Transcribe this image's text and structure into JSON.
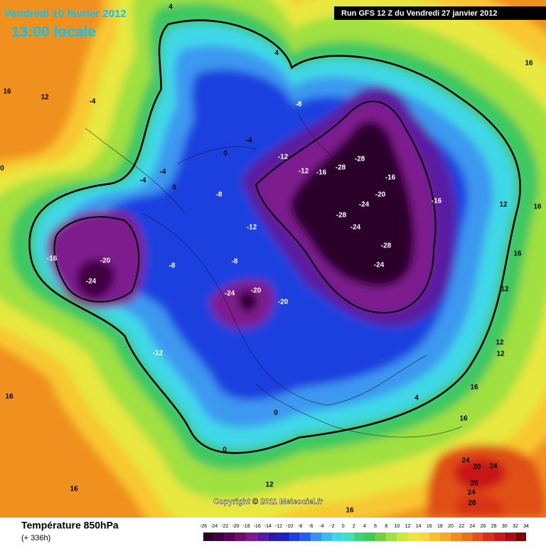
{
  "header": {
    "date": "Vendredi 10 février 2012",
    "time": "13:00 locale",
    "run": "Run GFS 12 Z du Vendredi 27 janvier 2012"
  },
  "map": {
    "copyright": "Copyright © 2011 Meteociel.fr",
    "contour_labels": [
      -4,
      -8,
      -4,
      0,
      -12,
      -12,
      -16,
      -28,
      -28,
      -16,
      -20,
      -24,
      -16,
      -28,
      -24,
      -28,
      -24,
      -8,
      -4,
      -4,
      0,
      -12,
      -16,
      -20,
      -24,
      -8,
      -8,
      -24,
      -20,
      -20,
      -12,
      0,
      0,
      4,
      4,
      4,
      12,
      16,
      16,
      12,
      12,
      12,
      12,
      16,
      16,
      16,
      16,
      12,
      16,
      24,
      20,
      24,
      20,
      24,
      28,
      16,
      0,
      16
    ]
  },
  "footer": {
    "title": "Température 850hPa",
    "lead": "(+ 336h)"
  },
  "legend": {
    "ticks": [
      -26,
      -24,
      -22,
      -20,
      -18,
      -16,
      -14,
      -12,
      -10,
      -8,
      -6,
      -4,
      -2,
      0,
      2,
      4,
      6,
      8,
      10,
      12,
      14,
      16,
      18,
      20,
      22,
      24,
      26,
      28,
      30,
      32,
      34
    ],
    "colors": [
      "#2a002a",
      "#400040",
      "#5a005a",
      "#700a70",
      "#7e1a8e",
      "#5a1aa0",
      "#2a1ab0",
      "#1a20c8",
      "#1a40e0",
      "#2060f0",
      "#3c90f0",
      "#40b8f0",
      "#40d8e8",
      "#40e0c0",
      "#40d080",
      "#40c850",
      "#70d040",
      "#a0e040",
      "#c8e840",
      "#e8e840",
      "#f8d83a",
      "#f8c030",
      "#f8a828",
      "#f08c1e",
      "#e87018",
      "#e05018",
      "#d83018",
      "#c81818",
      "#a80c10",
      "#800008"
    ]
  }
}
